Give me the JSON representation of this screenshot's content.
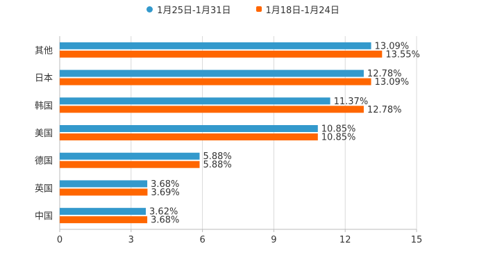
{
  "chart_data": {
    "type": "bar",
    "orientation": "horizontal",
    "categories": [
      "其他",
      "日本",
      "韩国",
      "美国",
      "德国",
      "英国",
      "中国"
    ],
    "series": [
      {
        "name": "1月25日-1月31日",
        "color": "#3399cc",
        "values": [
          13.09,
          12.78,
          11.37,
          10.85,
          5.88,
          3.68,
          3.62
        ],
        "labels": [
          "13.09%",
          "12.78%",
          "11.37%",
          "10.85%",
          "5.88%",
          "3.68%",
          "3.62%"
        ]
      },
      {
        "name": "1月18日-1月24日",
        "color": "#ff6600",
        "values": [
          13.55,
          13.09,
          12.78,
          10.85,
          5.88,
          3.69,
          3.68
        ],
        "labels": [
          "13.55%",
          "13.09%",
          "12.78%",
          "10.85%",
          "5.88%",
          "3.69%",
          "3.68%"
        ]
      }
    ],
    "xlim": [
      0,
      15
    ],
    "xticks": [
      "0",
      "3",
      "6",
      "9",
      "12",
      "15"
    ],
    "grid": true,
    "legend_position": "top-center",
    "title": "",
    "xlabel": "",
    "ylabel": ""
  }
}
